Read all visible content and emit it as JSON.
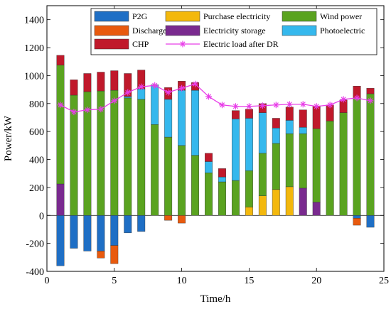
{
  "chart_data": {
    "type": "bar",
    "stacked": true,
    "x": [
      1,
      2,
      3,
      4,
      5,
      6,
      7,
      8,
      9,
      10,
      11,
      12,
      13,
      14,
      15,
      16,
      17,
      18,
      19,
      20,
      21,
      22,
      23,
      24
    ],
    "xlabel": "Time/h",
    "ylabel": "Power/kW",
    "xlim": [
      0,
      25
    ],
    "ylim": [
      -400,
      1500
    ],
    "xticks": [
      0,
      5,
      10,
      15,
      20,
      25
    ],
    "yticks": [
      -400,
      -200,
      0,
      200,
      400,
      600,
      800,
      1000,
      1200,
      1400
    ],
    "grid": false,
    "legend_position": "top",
    "series": [
      {
        "name": "P2G",
        "color": "#1f6fc5",
        "values": [
          -360,
          -235,
          -255,
          -255,
          -215,
          -125,
          -115,
          0,
          0,
          0,
          0,
          0,
          0,
          0,
          0,
          0,
          0,
          0,
          0,
          0,
          0,
          0,
          -20,
          -85
        ]
      },
      {
        "name": "Discharge",
        "color": "#e85a0e",
        "values": [
          0,
          0,
          0,
          -50,
          -130,
          0,
          0,
          0,
          -35,
          -55,
          0,
          0,
          0,
          0,
          0,
          0,
          0,
          0,
          0,
          0,
          0,
          0,
          -50,
          0
        ]
      },
      {
        "name": "CHP",
        "color": "#c0192b",
        "values": [
          70,
          110,
          130,
          135,
          140,
          165,
          135,
          0,
          85,
          65,
          55,
          60,
          60,
          60,
          65,
          65,
          70,
          95,
          125,
          160,
          115,
          90,
          85,
          40
        ]
      },
      {
        "name": "Purchase electricity",
        "color": "#f3b80d",
        "values": [
          0,
          0,
          0,
          0,
          0,
          0,
          0,
          0,
          0,
          0,
          0,
          0,
          0,
          0,
          60,
          140,
          185,
          205,
          0,
          0,
          0,
          0,
          0,
          0
        ]
      },
      {
        "name": "Electricity storage",
        "color": "#7a2a8f",
        "values": [
          225,
          0,
          0,
          0,
          0,
          0,
          0,
          0,
          0,
          0,
          0,
          0,
          0,
          0,
          0,
          0,
          0,
          0,
          195,
          95,
          0,
          0,
          0,
          0
        ]
      },
      {
        "name": "Photoelectric",
        "color": "#35b8ed",
        "values": [
          0,
          0,
          0,
          0,
          0,
          10,
          75,
          285,
          270,
          395,
          465,
          80,
          35,
          440,
          375,
          290,
          110,
          95,
          45,
          0,
          0,
          0,
          0,
          0
        ]
      },
      {
        "name": "Wind power",
        "color": "#5aa320",
        "values": [
          850,
          860,
          885,
          890,
          895,
          840,
          830,
          650,
          560,
          500,
          430,
          305,
          240,
          250,
          260,
          305,
          330,
          380,
          390,
          525,
          675,
          735,
          840,
          870
        ]
      }
    ],
    "lines": [
      {
        "name": "Electric load after DR",
        "color": "#e83ee8",
        "marker": "asterisk",
        "values": [
          790,
          740,
          755,
          760,
          820,
          880,
          920,
          930,
          880,
          910,
          940,
          850,
          790,
          780,
          780,
          785,
          790,
          795,
          795,
          780,
          790,
          830,
          840,
          820
        ]
      }
    ]
  }
}
